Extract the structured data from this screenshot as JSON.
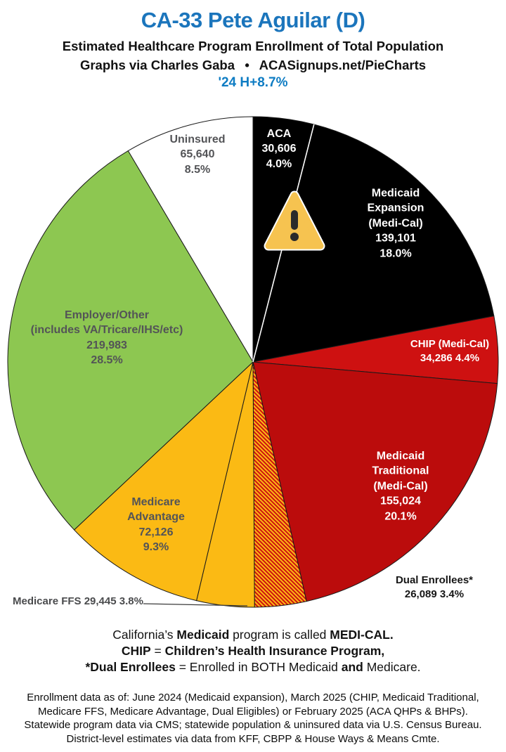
{
  "header": {
    "subtitle": "Estimated Healthcare Program Enrollment of Total Population",
    "credit": "Graphs via Charles Gaba  •  ACASignups.net/PieCharts",
    "tag": "'24 H+8.7%",
    "title_color": "#1B75BC",
    "tag_color": "#0E7CC3"
  },
  "chart_data": {
    "type": "pie",
    "title": "CA-33 Pete Aguilar (D)",
    "start_angle_deg": 0,
    "direction": "clockwise",
    "legend_position": "labels-on-slices",
    "hatch": {
      "bg": "#FBBA14",
      "stripe": "#CE1111"
    },
    "slices": [
      {
        "label": "ACA",
        "enrollment": "30,606",
        "percent": "4.0%",
        "count": 30606,
        "pct": 4.0,
        "color": "#000000",
        "text_color": "#FFFFFF"
      },
      {
        "label": "Medicaid Expansion",
        "sublabel": "(Medi-Cal)",
        "enrollment": "139,101",
        "percent": "18.0%",
        "count": 139101,
        "pct": 18.0,
        "color": "#000000",
        "text_color": "#FFFFFF"
      },
      {
        "label": "CHIP (Medi-Cal)",
        "enrollment": "34,286",
        "percent": "4.4%",
        "count": 34286,
        "pct": 4.4,
        "color": "#CE1111",
        "text_color": "#FFFFFF"
      },
      {
        "label": "Medicaid Traditional",
        "sublabel": "(Medi-Cal)",
        "enrollment": "155,024",
        "percent": "20.1%",
        "count": 155024,
        "pct": 20.1,
        "color": "#BB0C0C",
        "text_color": "#FFFFFF"
      },
      {
        "label": "Dual Enrollees*",
        "enrollment": "26,089",
        "percent": "3.4%",
        "count": 26089,
        "pct": 3.4,
        "color": "hatch",
        "text_color": "#161616"
      },
      {
        "label": "Medicare FFS",
        "enrollment": "29,445",
        "percent": "3.8%",
        "count": 29445,
        "pct": 3.8,
        "color": "#FBBA14",
        "text_color": "#4A4B4D"
      },
      {
        "label": "Medicare Advantage",
        "enrollment": "72,126",
        "percent": "9.3%",
        "count": 72126,
        "pct": 9.3,
        "color": "#FBBA14",
        "text_color": "#535457"
      },
      {
        "label": "Employer/Other",
        "sublabel": "(includes VA/Tricare/IHS/etc)",
        "enrollment": "219,983",
        "percent": "28.5%",
        "count": 219983,
        "pct": 28.5,
        "color": "#8DC751",
        "text_color": "#535457"
      },
      {
        "label": "Uninsured",
        "enrollment": "65,640",
        "percent": "8.5%",
        "count": 65640,
        "pct": 8.5,
        "color": "#FFFFFF",
        "text_color": "#535457"
      }
    ]
  },
  "warning_icon": {
    "fill": "#F6C350",
    "border": "#FFFFFF",
    "glyph_color": "#2B2B2B"
  },
  "notes": {
    "line1": {
      "s1": "California’s ",
      "s2": "Medicaid",
      "s3": " program is called ",
      "s4": "MEDI-CAL."
    },
    "line2": {
      "s1": "CHIP",
      "s2": " = ",
      "s3": "Children’s Health Insurance Program,"
    },
    "line3": {
      "s1": "*Dual Enrollees",
      "s2": " = Enrolled in BOTH Medicaid ",
      "s3": "and",
      "s4": " Medicare."
    }
  },
  "footer": {
    "lines": [
      "Enrollment data as of: June 2024 (Medicaid expansion), March 2025 (CHIP, Medicaid Traditional,",
      "Medicare FFS, Medicare Advantage, Dual Eligibles) or February 2025 (ACA QHPs & BHPs).",
      "Statewide program data via CMS; statewide population & uninsured data via U.S. Census Bureau.",
      "District-level estimates via data from KFF, CBPP & House Ways & Means Cmte."
    ]
  }
}
